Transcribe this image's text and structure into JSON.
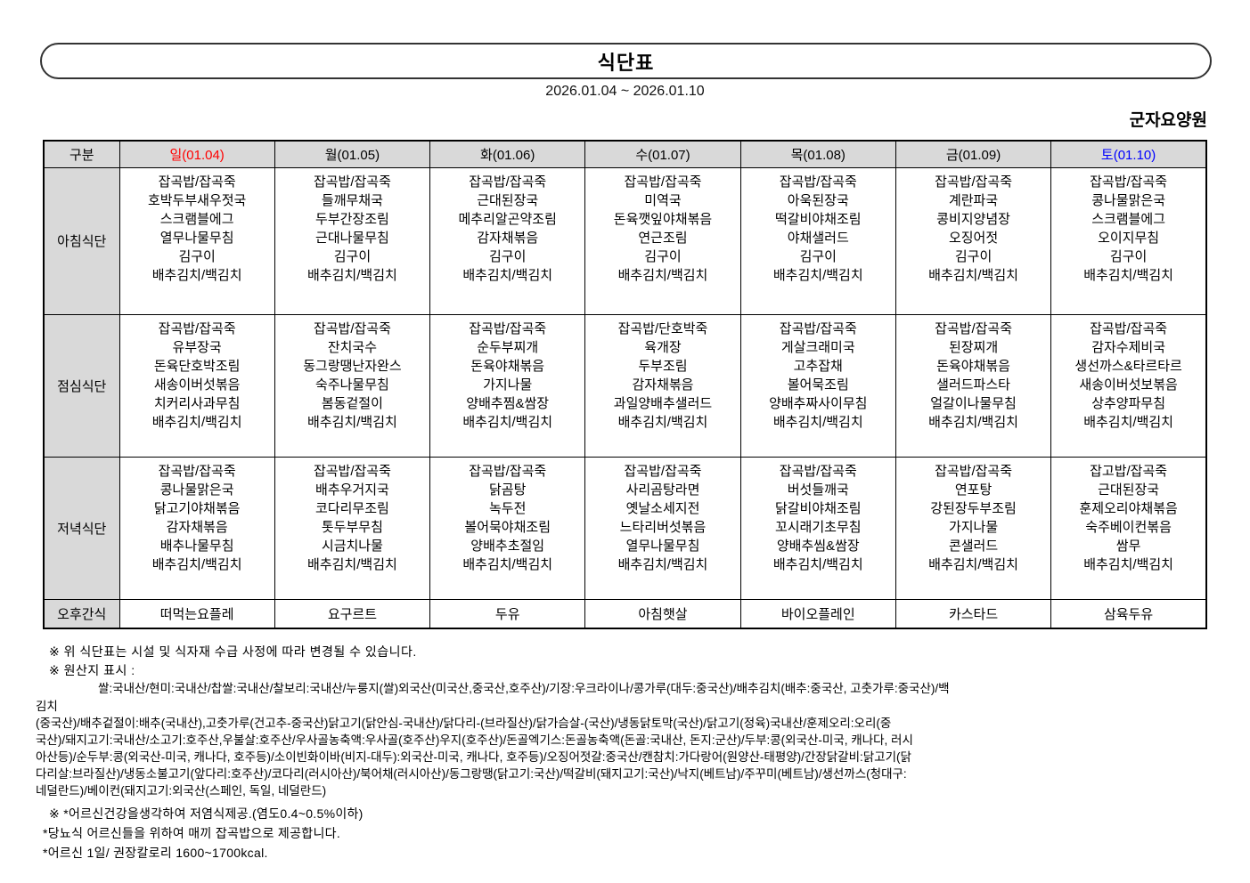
{
  "page": {
    "title": "식단표",
    "date_range": "2026.01.04 ~ 2026.01.10",
    "facility": "군자요양원"
  },
  "colors": {
    "sunday": "#ff0000",
    "weekday": "#000000",
    "saturday": "#0000ff",
    "header_bg": "#d9d9d9",
    "border": "#000000"
  },
  "table": {
    "corner_label": "구분",
    "day_headers": [
      {
        "label": "일(01.04)",
        "color": "#ff0000"
      },
      {
        "label": "월(01.05)",
        "color": "#000000"
      },
      {
        "label": "화(01.06)",
        "color": "#000000"
      },
      {
        "label": "수(01.07)",
        "color": "#000000"
      },
      {
        "label": "목(01.08)",
        "color": "#000000"
      },
      {
        "label": "금(01.09)",
        "color": "#000000"
      },
      {
        "label": "토(01.10)",
        "color": "#0000ff"
      }
    ],
    "meal_rows": [
      {
        "label": "아침식단",
        "row_key": "breakfast",
        "cells": [
          [
            "잡곡밥/잡곡죽",
            "호박두부새우젓국",
            "스크램블에그",
            "열무나물무침",
            "김구이",
            "배추김치/백김치"
          ],
          [
            "잡곡밥/잡곡죽",
            "들깨무채국",
            "두부간장조림",
            "근대나물무침",
            "김구이",
            "배추김치/백김치"
          ],
          [
            "잡곡밥/잡곡죽",
            "근대된장국",
            "메추리알곤약조림",
            "감자채볶음",
            "김구이",
            "배추김치/백김치"
          ],
          [
            "잡곡밥/잡곡죽",
            "미역국",
            "돈육깻잎야채볶음",
            "연근조림",
            "김구이",
            "배추김치/백김치"
          ],
          [
            "잡곡밥/잡곡죽",
            "아욱된장국",
            "떡갈비야채조림",
            "야채샐러드",
            "김구이",
            "배추김치/백김치"
          ],
          [
            "잡곡밥/잡곡죽",
            "계란파국",
            "콩비지양념장",
            "오징어젓",
            "김구이",
            "배추김치/백김치"
          ],
          [
            "잡곡밥/잡곡죽",
            "콩나물맑은국",
            "스크램블에그",
            "오이지무침",
            "김구이",
            "배추김치/백김치"
          ]
        ]
      },
      {
        "label": "점심식단",
        "row_key": "lunch",
        "cells": [
          [
            "잡곡밥/잡곡죽",
            "유부장국",
            "돈육단호박조림",
            "새송이버섯볶음",
            "치커리사과무침",
            "배추김치/백김치"
          ],
          [
            "잡곡밥/잡곡죽",
            "잔치국수",
            "동그랑땡난자완스",
            "숙주나물무침",
            "봄동겉절이",
            "배추김치/백김치"
          ],
          [
            "잡곡밥/잡곡죽",
            "순두부찌개",
            "돈육야채볶음",
            "가지나물",
            "양배추찜&쌈장",
            "배추김치/백김치"
          ],
          [
            "잡곡밥/단호박죽",
            "육개장",
            "두부조림",
            "감자채볶음",
            "과일양배추샐러드",
            "배추김치/백김치"
          ],
          [
            "잡곡밥/잡곡죽",
            "게살크래미국",
            "고추잡채",
            "볼어묵조림",
            "양배추짜사이무침",
            "배추김치/백김치"
          ],
          [
            "잡곡밥/잡곡죽",
            "된장찌개",
            "돈육야채볶음",
            "샐러드파스타",
            "얼갈이나물무침",
            "배추김치/백김치"
          ],
          [
            "잡곡밥/잡곡죽",
            "감자수제비국",
            "생선까스&타르타르",
            "새송이버섯보볶음",
            "상추양파무침",
            "배추김치/백김치"
          ]
        ]
      },
      {
        "label": "저녁식단",
        "row_key": "dinner",
        "cells": [
          [
            "잡곡밥/잡곡죽",
            "콩나물맑은국",
            "닭고기야채볶음",
            "감자채볶음",
            "배추나물무침",
            "배추김치/백김치"
          ],
          [
            "잡곡밥/잡곡죽",
            "배추우거지국",
            "코다리무조림",
            "톳두부무침",
            "시금치나물",
            "배추김치/백김치"
          ],
          [
            "잡곡밥/잡곡죽",
            "닭곰탕",
            "녹두전",
            "볼어묵야채조림",
            "양배추초절임",
            "배추김치/백김치"
          ],
          [
            "잡곡밥/잡곡죽",
            "사리곰탕라면",
            "옛날소세지전",
            "느타리버섯볶음",
            "열무나물무침",
            "배추김치/백김치"
          ],
          [
            "잡곡밥/잡곡죽",
            "버섯들깨국",
            "닭갈비야채조림",
            "꼬시래기초무침",
            "양배추씸&쌈장",
            "배추김치/백김치"
          ],
          [
            "잡곡밥/잡곡죽",
            "연포탕",
            "강된장두부조림",
            "가지나물",
            "콘샐러드",
            "배추김치/백김치"
          ],
          [
            "잡고밥/잡곡죽",
            "근대된장국",
            "훈제오리야채볶음",
            "숙주베이컨볶음",
            "쌈무",
            "배추김치/백김치"
          ]
        ]
      }
    ],
    "snack_row": {
      "label": "오후간식",
      "values": [
        "떠먹는요플레",
        "요구르트",
        "두유",
        "아침햇살",
        "바이오플레인",
        "카스타드",
        "삼육두유"
      ]
    }
  },
  "notes": {
    "change_notice": "※ 위 식단표는 시설 및 식자재 수급 사정에 따라 변경될 수 있습니다.",
    "origin_heading": "※ 원산지 표시 :",
    "origin_lines": [
      "쌀:국내산/현미:국내산/찹쌀:국내산/찰보리:국내산/누룽지(쌀)외국산(미국산,중국산,호주산)/기장:우크라이나/콩가루(대두:중국산)/배추김치(배추:중국산, 고춧가루:중국산)/백",
      "김치",
      "(중국산)/배추겉절이:배추(국내산),고춧가루(건고추-중국산)닭고기(닭안심-국내산)/닭다리-(브라질산)/닭가슴살-(국산)/냉동닭토막(국산)/닭고기(정육)국내산/훈제오리:오리(중",
      "국산)/돼지고기:국내산/소고기:호주산,우불살:호주산/우사골농축액:우사골(호주산)우지(호주산)/돈골엑기스:돈골농축액(돈골:국내산, 돈지:군산)/두부:콩(외국산-미국, 캐나다, 러시",
      "아산등)/순두부:콩(외국산-미국, 캐나다, 호주등)/소이빈화이바(비지-대두):외국산-미국, 캐나다, 호주등)/오징어젓갈:중국산/캔참치:가다랑어(원양산-태평양)/간장닭갈비:닭고기(닭",
      "다리살:브라질산)/냉동소불고기(앞다리:호주산)/코다리(러시아산)/북어채(러시아산)/동그랑땡(닭고기:국산)/떡갈비(돼지고기:국산)/낙지(베트남)/주꾸미(베트남)/생선까스(청대구:",
      "네덜란드)/베이컨(돼지고기:외국산(스페인, 독일, 네덜란드)"
    ],
    "bottom_notes": [
      "※ *어르신건강을생각하여 저염식제공.(염도0.4~0.5%이하)",
      "*당뇨식 어르신들을 위하여 매끼 잡곡밥으로 제공합니다.",
      "*어르신 1일/ 권장칼로리 1600~1700kcal."
    ]
  }
}
